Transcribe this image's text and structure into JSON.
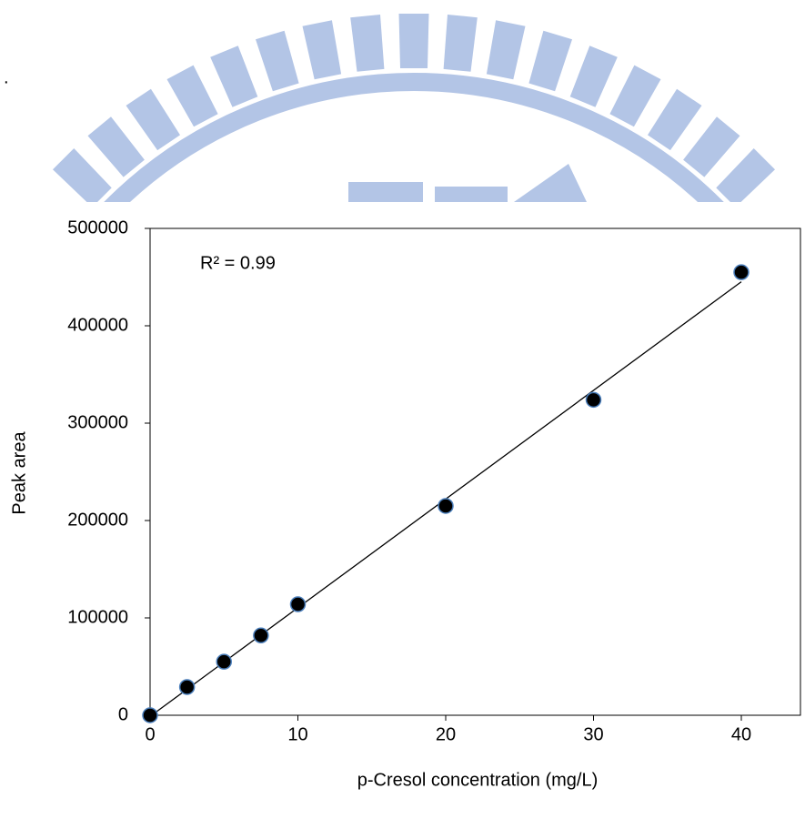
{
  "chart_data": {
    "type": "scatter",
    "x_label": "p-Cresol concentration (mg/L)",
    "y_label": "Peak area",
    "annotation": "R² = 0.99",
    "x": [
      0,
      2.5,
      5,
      7.5,
      10,
      20,
      30,
      40
    ],
    "series": [
      {
        "color": "#000000",
        "values": [
          0,
          29000,
          55000,
          82000,
          114000,
          215000,
          324000,
          455000
        ]
      }
    ],
    "xlim": [
      0,
      44
    ],
    "xticks": [
      0,
      10,
      20,
      30,
      40
    ],
    "ylim": [
      0,
      500000
    ],
    "yticks": [
      0,
      100000,
      200000,
      300000,
      400000,
      500000
    ],
    "trendline": true
  }
}
